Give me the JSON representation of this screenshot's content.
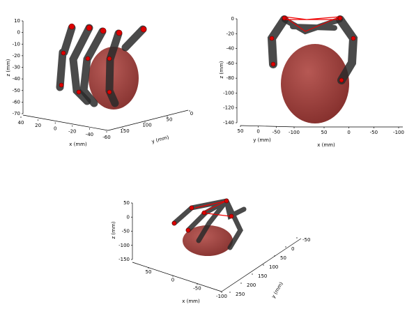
{
  "chart_data": [
    {
      "type": "3d-scene",
      "xlabel": "x (mm)",
      "ylabel": "y (mm)",
      "zlabel": "z (mm)",
      "xlim": [
        40,
        -60
      ],
      "xticks": [
        40,
        20,
        0,
        -20,
        -40,
        -60
      ],
      "ylim": [
        150,
        0
      ],
      "yticks": [
        150,
        100,
        50,
        0
      ],
      "zlim": [
        -70,
        10
      ],
      "zticks": [
        10,
        0,
        -10,
        -20,
        -30,
        -40,
        -50,
        -60,
        -70
      ]
    },
    {
      "type": "3d-scene",
      "xlabel": "x (mm)",
      "ylabel": "y (mm)",
      "zlabel": "z (mm)",
      "xlim": [
        50,
        -100
      ],
      "xticks": [
        50,
        0,
        -50,
        -100
      ],
      "ylim": [
        50,
        -100
      ],
      "yticks": [
        50,
        0,
        -50,
        -100
      ],
      "zlim": [
        -140,
        0
      ],
      "zticks": [
        0,
        -20,
        -40,
        -60,
        -80,
        -100,
        -120,
        -140
      ]
    },
    {
      "type": "3d-scene",
      "xlabel": "x (mm)",
      "ylabel": "y (mm)",
      "zlabel": "z (mm)",
      "xlim": [
        50,
        -100
      ],
      "xticks": [
        50,
        0,
        -50,
        -100
      ],
      "ylim": [
        250,
        -50
      ],
      "yticks": [
        250,
        200,
        150,
        100,
        50,
        0,
        -50
      ],
      "zlim": [
        -150,
        50
      ],
      "zticks": [
        50,
        0,
        -50,
        -100,
        -150
      ]
    }
  ]
}
